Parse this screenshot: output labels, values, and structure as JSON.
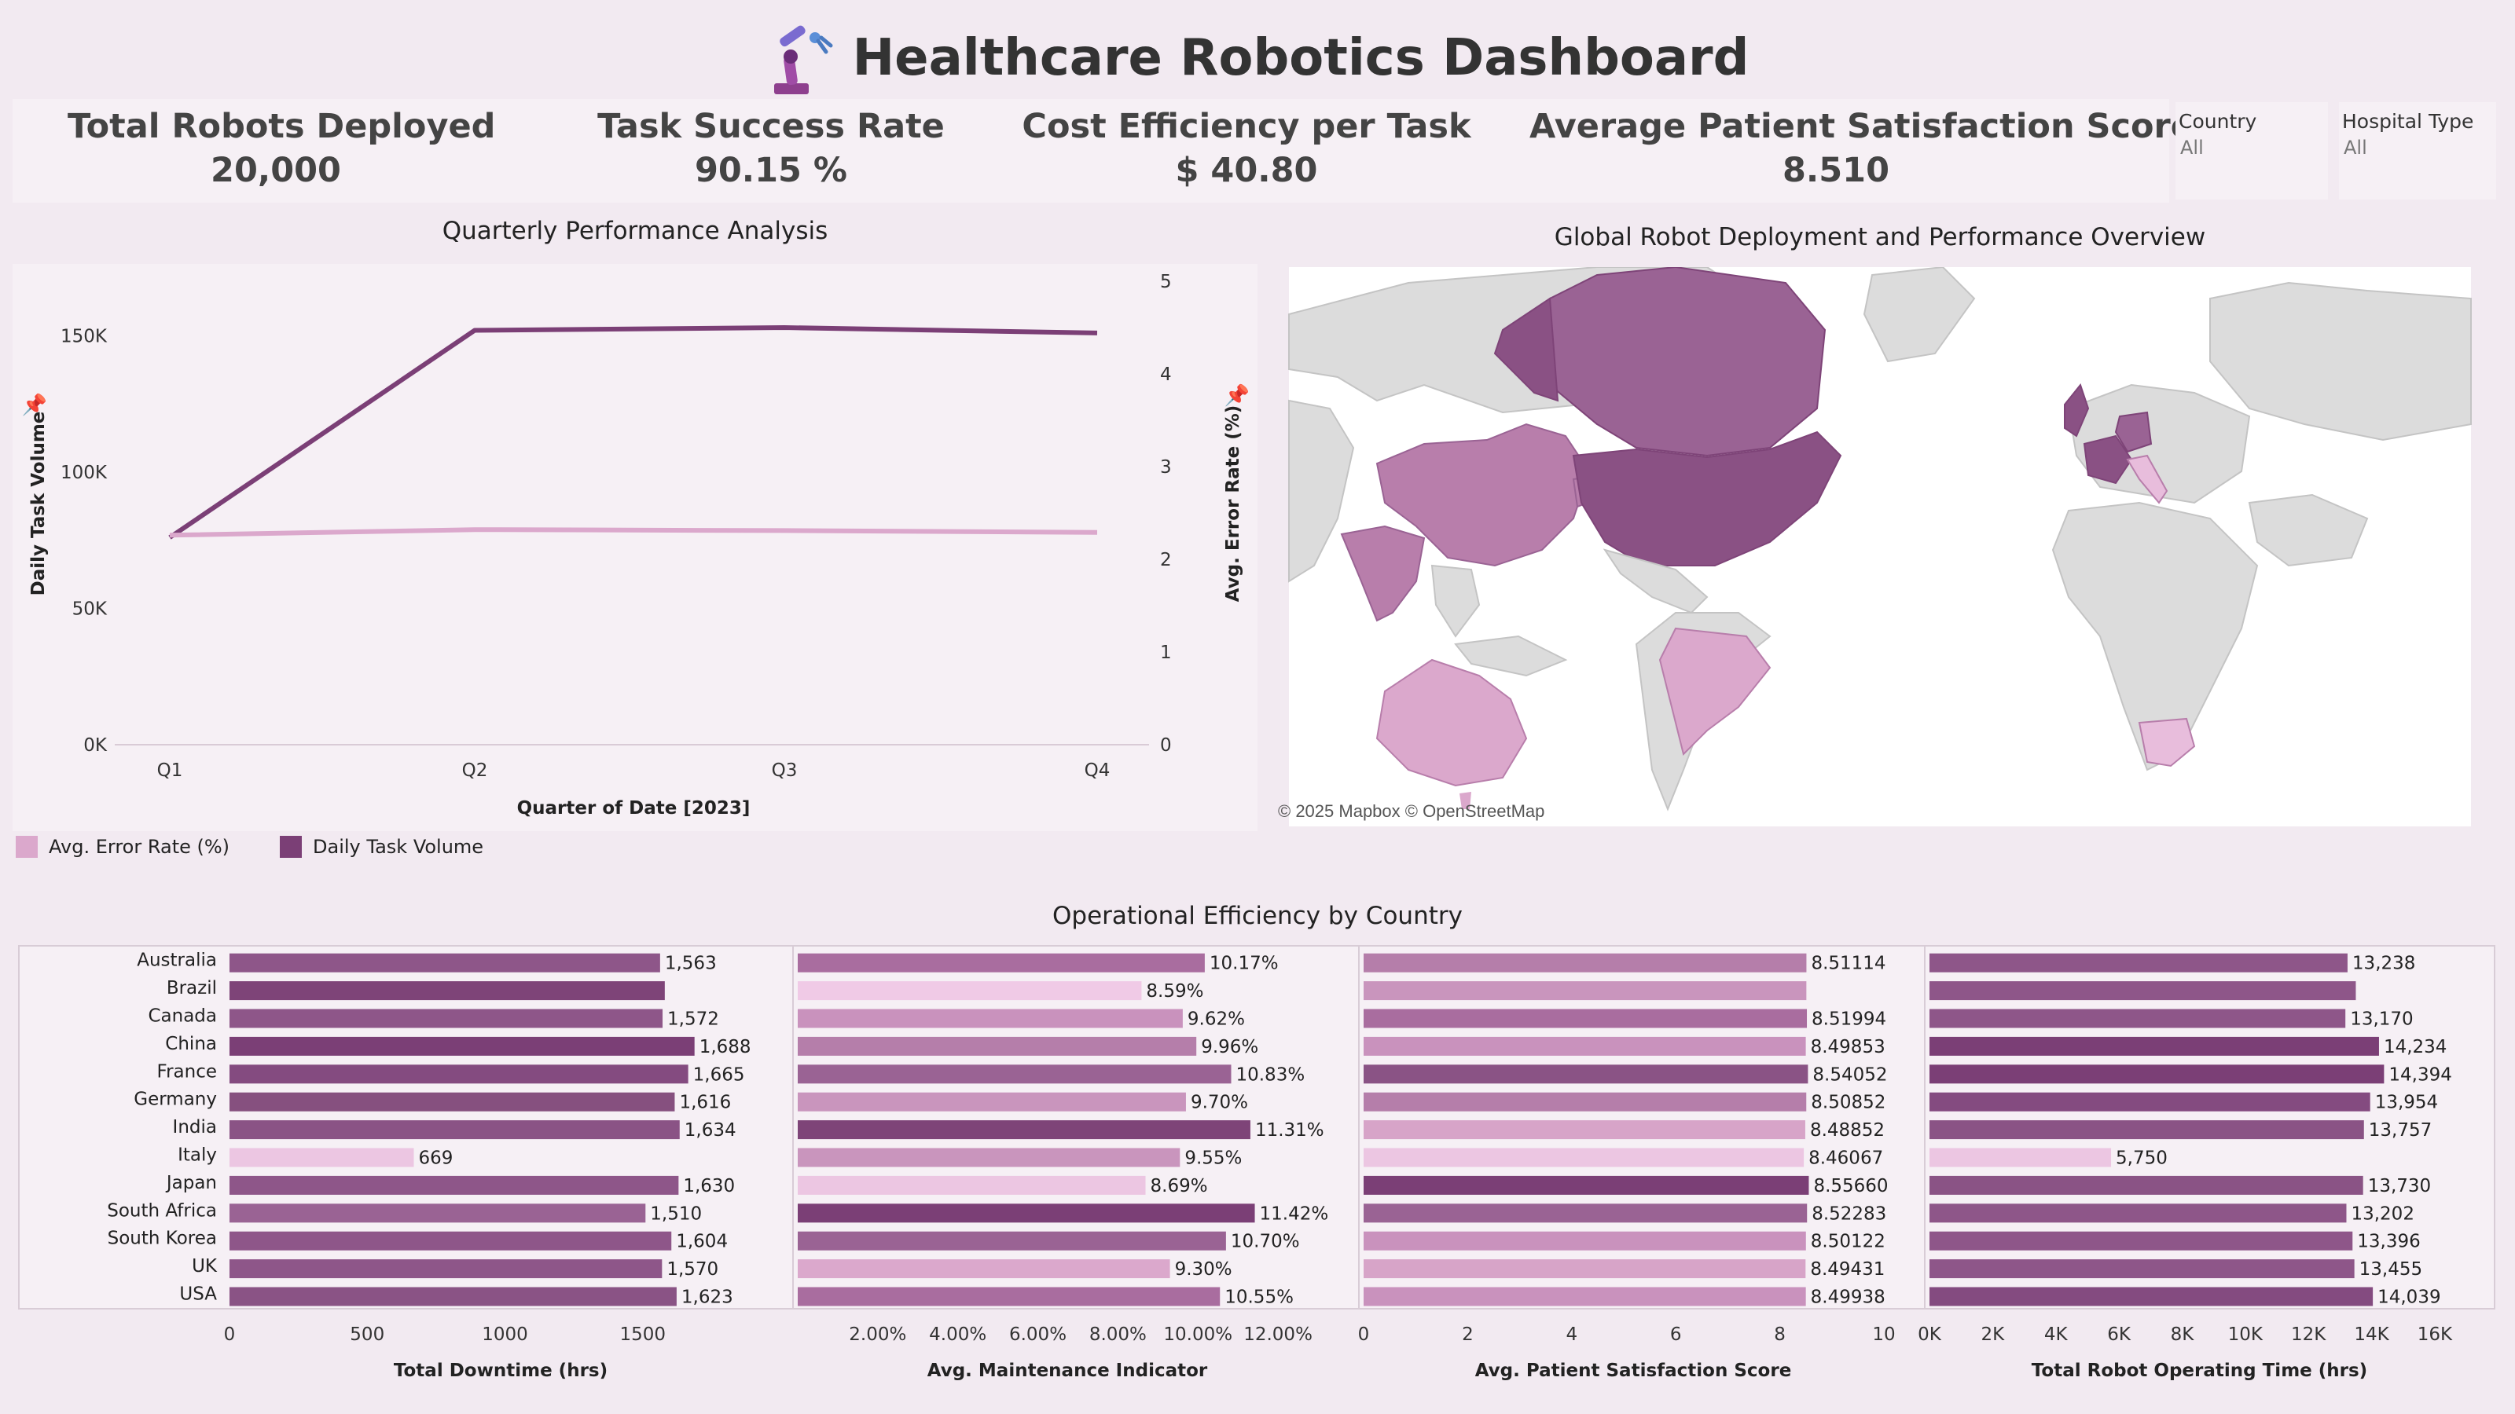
{
  "header": {
    "title": "Healthcare Robotics Dashboard",
    "logo_icon": "robot-arm-icon"
  },
  "kpis": [
    {
      "label": "Total Robots Deployed",
      "value": "20,000"
    },
    {
      "label": "Task Success Rate",
      "value": "90.15 %"
    },
    {
      "label": "Cost Efficiency per Task",
      "value": "$ 40.80"
    },
    {
      "label": "Average Patient Satisfaction Score",
      "value": "8.510"
    }
  ],
  "filters": [
    {
      "label": "Country",
      "value": "All"
    },
    {
      "label": "Hospital Type",
      "value": "All"
    }
  ],
  "line_panel": {
    "title": "Quarterly Performance Analysis",
    "legend": [
      {
        "label": "Avg. Error Rate (%)",
        "color": "#dba8cc"
      },
      {
        "label": "Daily Task Volume",
        "color": "#7b3f76"
      }
    ]
  },
  "map_panel": {
    "title": "Global Robot Deployment and Performance Overview",
    "attribution": "© 2025 Mapbox © OpenStreetMap",
    "land_color": "#dcdcdc",
    "highlight_dark": "#8a5184",
    "highlight_mid": "#b87eab",
    "highlight_light": "#e8bddc"
  },
  "bars_panel": {
    "title": "Operational Efficiency by Country"
  },
  "colors": {
    "background": "#f2eaf1",
    "panel": "#f6f0f5",
    "dark_purple": "#7b3f76",
    "light_pink": "#dba8cc"
  },
  "chart_data": [
    {
      "type": "line",
      "title": "Quarterly Performance Analysis",
      "xlabel": "Quarter of Date [2023]",
      "ylabel_left": "Daily Task Volume",
      "ylabel_right": "Avg. Error Rate (%)",
      "categories": [
        "Q1",
        "Q2",
        "Q3",
        "Q4"
      ],
      "y_left_ticks": [
        "0K",
        "50K",
        "100K",
        "150K"
      ],
      "y_right_ticks": [
        "0",
        "1",
        "2",
        "3",
        "4",
        "5"
      ],
      "ylim_left": [
        0,
        170000
      ],
      "ylim_right": [
        0,
        5
      ],
      "series": [
        {
          "name": "Daily Task Volume",
          "axis": "left",
          "color": "#7b3f76",
          "values": [
            76000,
            152000,
            153000,
            151000
          ]
        },
        {
          "name": "Avg. Error Rate (%)",
          "axis": "right",
          "color": "#dba8cc",
          "values": [
            2.26,
            2.32,
            2.31,
            2.29
          ]
        }
      ]
    },
    {
      "type": "bar",
      "orientation": "horizontal",
      "title": "Operational Efficiency by Country",
      "categories": [
        "Australia",
        "Brazil",
        "Canada",
        "China",
        "France",
        "Germany",
        "India",
        "Italy",
        "Japan",
        "South Africa",
        "South Korea",
        "UK",
        "USA"
      ],
      "panels": [
        {
          "xlabel": "Total Downtime (hrs)",
          "xlim": [
            0,
            1900
          ],
          "ticks": [
            {
              "v": 0,
              "label": "0"
            },
            {
              "v": 500,
              "label": "500"
            },
            {
              "v": 1000,
              "label": "1000"
            },
            {
              "v": 1500,
              "label": "1500"
            }
          ],
          "values": [
            1563,
            1580,
            1572,
            1688,
            1665,
            1616,
            1634,
            669,
            1630,
            1510,
            1604,
            1570,
            1623
          ],
          "labels": [
            "1,563",
            "",
            "1,572",
            "1,688",
            "1,665",
            "1,616",
            "1,634",
            "669",
            "1,630",
            "1,510",
            "1,604",
            "1,570",
            "1,623"
          ],
          "colors": [
            "#8e5689",
            "#7e4478",
            "#8e5689",
            "#7b3f76",
            "#844b80",
            "#86507f",
            "#8a5385",
            "#ecc6e2",
            "#8e5689",
            "#9a6394",
            "#8e5689",
            "#8e5689",
            "#8a5385"
          ]
        },
        {
          "xlabel": "Avg. Maintenance Indicator",
          "xlim": [
            0,
            0.13
          ],
          "ticks": [
            {
              "v": 0.02,
              "label": "2.00%"
            },
            {
              "v": 0.04,
              "label": "4.00%"
            },
            {
              "v": 0.06,
              "label": "6.00%"
            },
            {
              "v": 0.08,
              "label": "8.00%"
            },
            {
              "v": 0.1,
              "label": "10.00%"
            },
            {
              "v": 0.12,
              "label": "12.00%"
            }
          ],
          "values": [
            0.1017,
            0.0859,
            0.0962,
            0.0996,
            0.1083,
            0.097,
            0.1131,
            0.0955,
            0.0869,
            0.1142,
            0.107,
            0.093,
            0.1055
          ],
          "labels": [
            "10.17%",
            "8.59%",
            "9.62%",
            "9.96%",
            "10.83%",
            "9.70%",
            "11.31%",
            "9.55%",
            "8.69%",
            "11.42%",
            "10.70%",
            "9.30%",
            "10.55%"
          ],
          "colors": [
            "#a96d9f",
            "#f0cae6",
            "#c992bd",
            "#b57eaa",
            "#9a6394",
            "#c995bd",
            "#7e4478",
            "#c995bd",
            "#ecc6e2",
            "#7b3f76",
            "#9a6394",
            "#dba8cc",
            "#a96d9f"
          ]
        },
        {
          "xlabel": "Avg. Patient Satisfaction Score",
          "xlim": [
            0,
            10
          ],
          "ticks": [
            {
              "v": 0,
              "label": "0"
            },
            {
              "v": 2,
              "label": "2"
            },
            {
              "v": 4,
              "label": "4"
            },
            {
              "v": 6,
              "label": "6"
            },
            {
              "v": 8,
              "label": "8"
            },
            {
              "v": 10,
              "label": "10"
            }
          ],
          "values": [
            8.51114,
            8.51,
            8.51994,
            8.49853,
            8.54052,
            8.50852,
            8.48852,
            8.46067,
            8.5566,
            8.52283,
            8.50122,
            8.49431,
            8.49938
          ],
          "labels": [
            "8.51114",
            "",
            "8.51994",
            "8.49853",
            "8.54052",
            "8.50852",
            "8.48852",
            "8.46067",
            "8.55660",
            "8.52283",
            "8.50122",
            "8.49431",
            "8.49938"
          ],
          "colors": [
            "#b57eaa",
            "#c995bd",
            "#a96d9f",
            "#c992bd",
            "#8a5385",
            "#b57eaa",
            "#d7a4c8",
            "#ecc6e2",
            "#7b3f76",
            "#9a6394",
            "#c992bd",
            "#d7a4c8",
            "#c992bd"
          ]
        },
        {
          "xlabel": "Total Robot Operating Time (hrs)",
          "xlim": [
            0,
            16500
          ],
          "ticks": [
            {
              "v": 0,
              "label": "0K"
            },
            {
              "v": 2000,
              "label": "2K"
            },
            {
              "v": 4000,
              "label": "4K"
            },
            {
              "v": 6000,
              "label": "6K"
            },
            {
              "v": 8000,
              "label": "8K"
            },
            {
              "v": 10000,
              "label": "10K"
            },
            {
              "v": 12000,
              "label": "12K"
            },
            {
              "v": 14000,
              "label": "14K"
            },
            {
              "v": 16000,
              "label": "16K"
            }
          ],
          "values": [
            13238,
            13500,
            13170,
            14234,
            14394,
            13954,
            13757,
            5750,
            13730,
            13202,
            13396,
            13455,
            14039
          ],
          "labels": [
            "13,238",
            "",
            "13,170",
            "14,234",
            "14,394",
            "13,954",
            "13,757",
            "5,750",
            "13,730",
            "13,202",
            "13,396",
            "13,455",
            "14,039"
          ],
          "colors": [
            "#8e5689",
            "#8e5689",
            "#8e5689",
            "#7b3f76",
            "#7b3f76",
            "#844b80",
            "#8a5385",
            "#ecc6e2",
            "#8a5385",
            "#8e5689",
            "#8e5689",
            "#8e5689",
            "#844b80"
          ]
        }
      ]
    }
  ]
}
